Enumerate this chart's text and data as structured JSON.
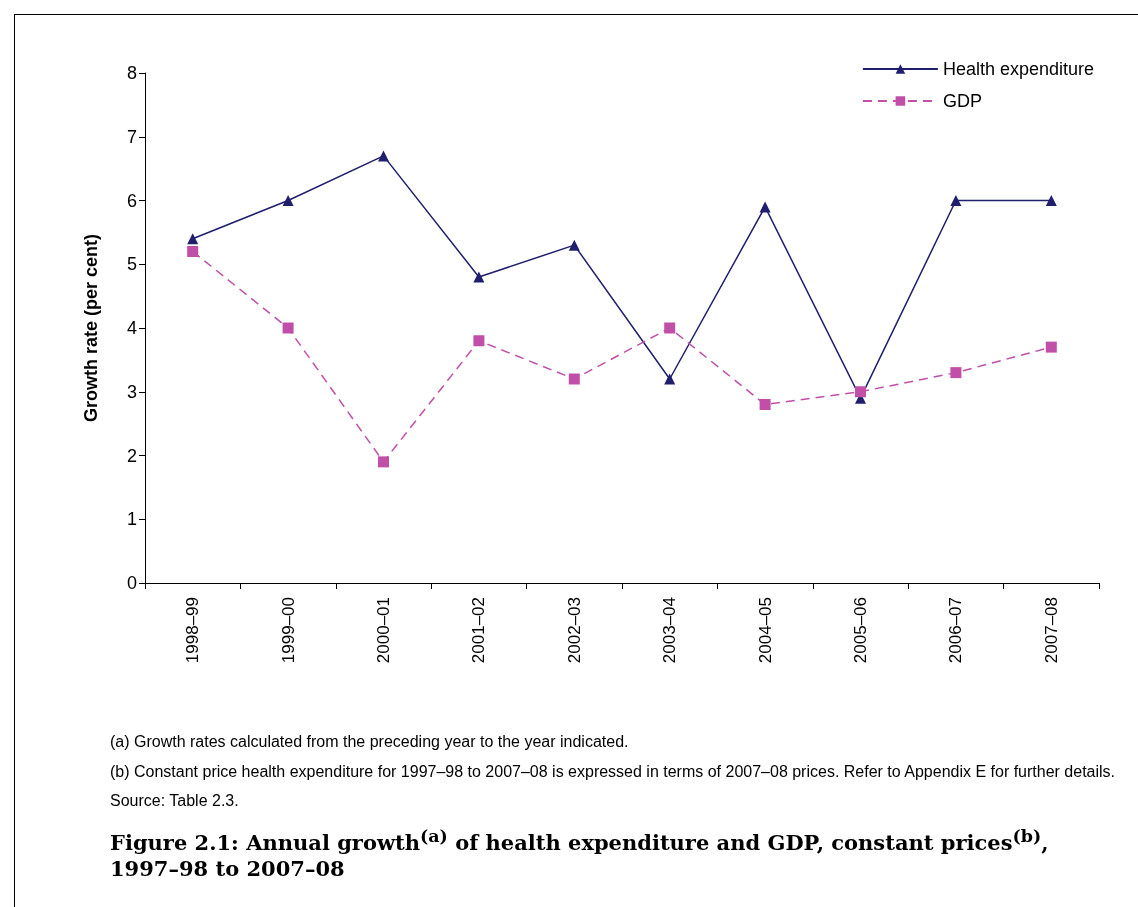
{
  "chart_data": {
    "type": "line",
    "title": "Figure 2.1: Annual growth$^{(a)}$ of health expenditure and GDP, constant prices$^{(b)}$, 1997–98 to 2007–08",
    "ylabel": "Growth rate (per cent)",
    "categories": [
      "1998–99",
      "1999–00",
      "2000–01",
      "2001–02",
      "2002–03",
      "2003–04",
      "2004–05",
      "2005–06",
      "2006–07",
      "2007–08"
    ],
    "series": [
      {
        "name": "Health expenditure",
        "color": "#1f1f6e",
        "marker": "triangle",
        "line_style": "solid",
        "values": [
          5.4,
          6.0,
          6.7,
          4.8,
          5.3,
          3.2,
          5.9,
          2.9,
          6.0,
          6.0
        ]
      },
      {
        "name": "GDP",
        "color": "#c14fa8",
        "marker": "square",
        "line_style": "dashed",
        "values": [
          5.2,
          4.0,
          1.9,
          3.8,
          3.2,
          4.0,
          2.8,
          3.0,
          3.3,
          3.7
        ]
      }
    ],
    "ylim": [
      0,
      8
    ],
    "yticks": [
      0,
      1,
      2,
      3,
      4,
      5,
      6,
      7,
      8
    ],
    "grid": false,
    "legend": "top right",
    "annotations": [
      "(a)    Growth rates calculated from the preceding year to the year indicated.",
      "(b)    Constant price health expenditure for 1997–98 to 2007–08 is expressed in terms of 2007–08 prices. Refer to Appendix E for further details.",
      "Source: Table 2.3."
    ]
  }
}
